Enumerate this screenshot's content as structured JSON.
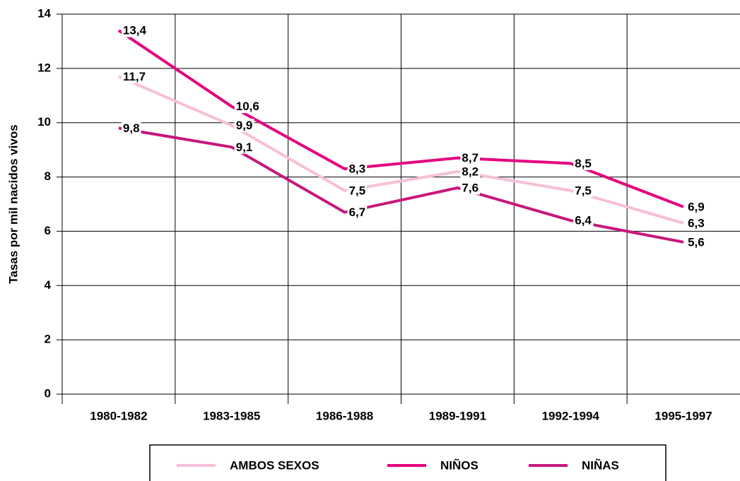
{
  "chart_data": {
    "type": "line",
    "ylabel": "Tasas por mil nacidos vivos",
    "categories": [
      "1980-1982",
      "1983-1985",
      "1986-1988",
      "1989-1991",
      "1992-1994",
      "1995-1997"
    ],
    "series": [
      {
        "name": "AMBOS SEXOS",
        "color": "#f7bfd8",
        "values": [
          11.7,
          9.9,
          7.5,
          8.2,
          7.5,
          6.3
        ],
        "value_labels": [
          "11,7",
          "9,9",
          "7,5",
          "8,2",
          "7,5",
          "6,3"
        ]
      },
      {
        "name": "NIÑOS",
        "color": "#e5007e",
        "values": [
          13.4,
          10.6,
          8.3,
          8.7,
          8.5,
          6.9
        ],
        "value_labels": [
          "13,4",
          "10,6",
          "8,3",
          "8,7",
          "8,5",
          "6,9"
        ]
      },
      {
        "name": "NIÑAS",
        "color": "#c8177c",
        "values": [
          9.8,
          9.1,
          6.7,
          7.6,
          6.4,
          5.6
        ],
        "value_labels": [
          "9,8",
          "9,1",
          "6,7",
          "7,6",
          "6,4",
          "5,6"
        ]
      }
    ],
    "ylim": [
      0,
      14
    ],
    "yticks": [
      0,
      2,
      4,
      6,
      8,
      10,
      12,
      14
    ],
    "grid": true,
    "legend": "bottom"
  }
}
